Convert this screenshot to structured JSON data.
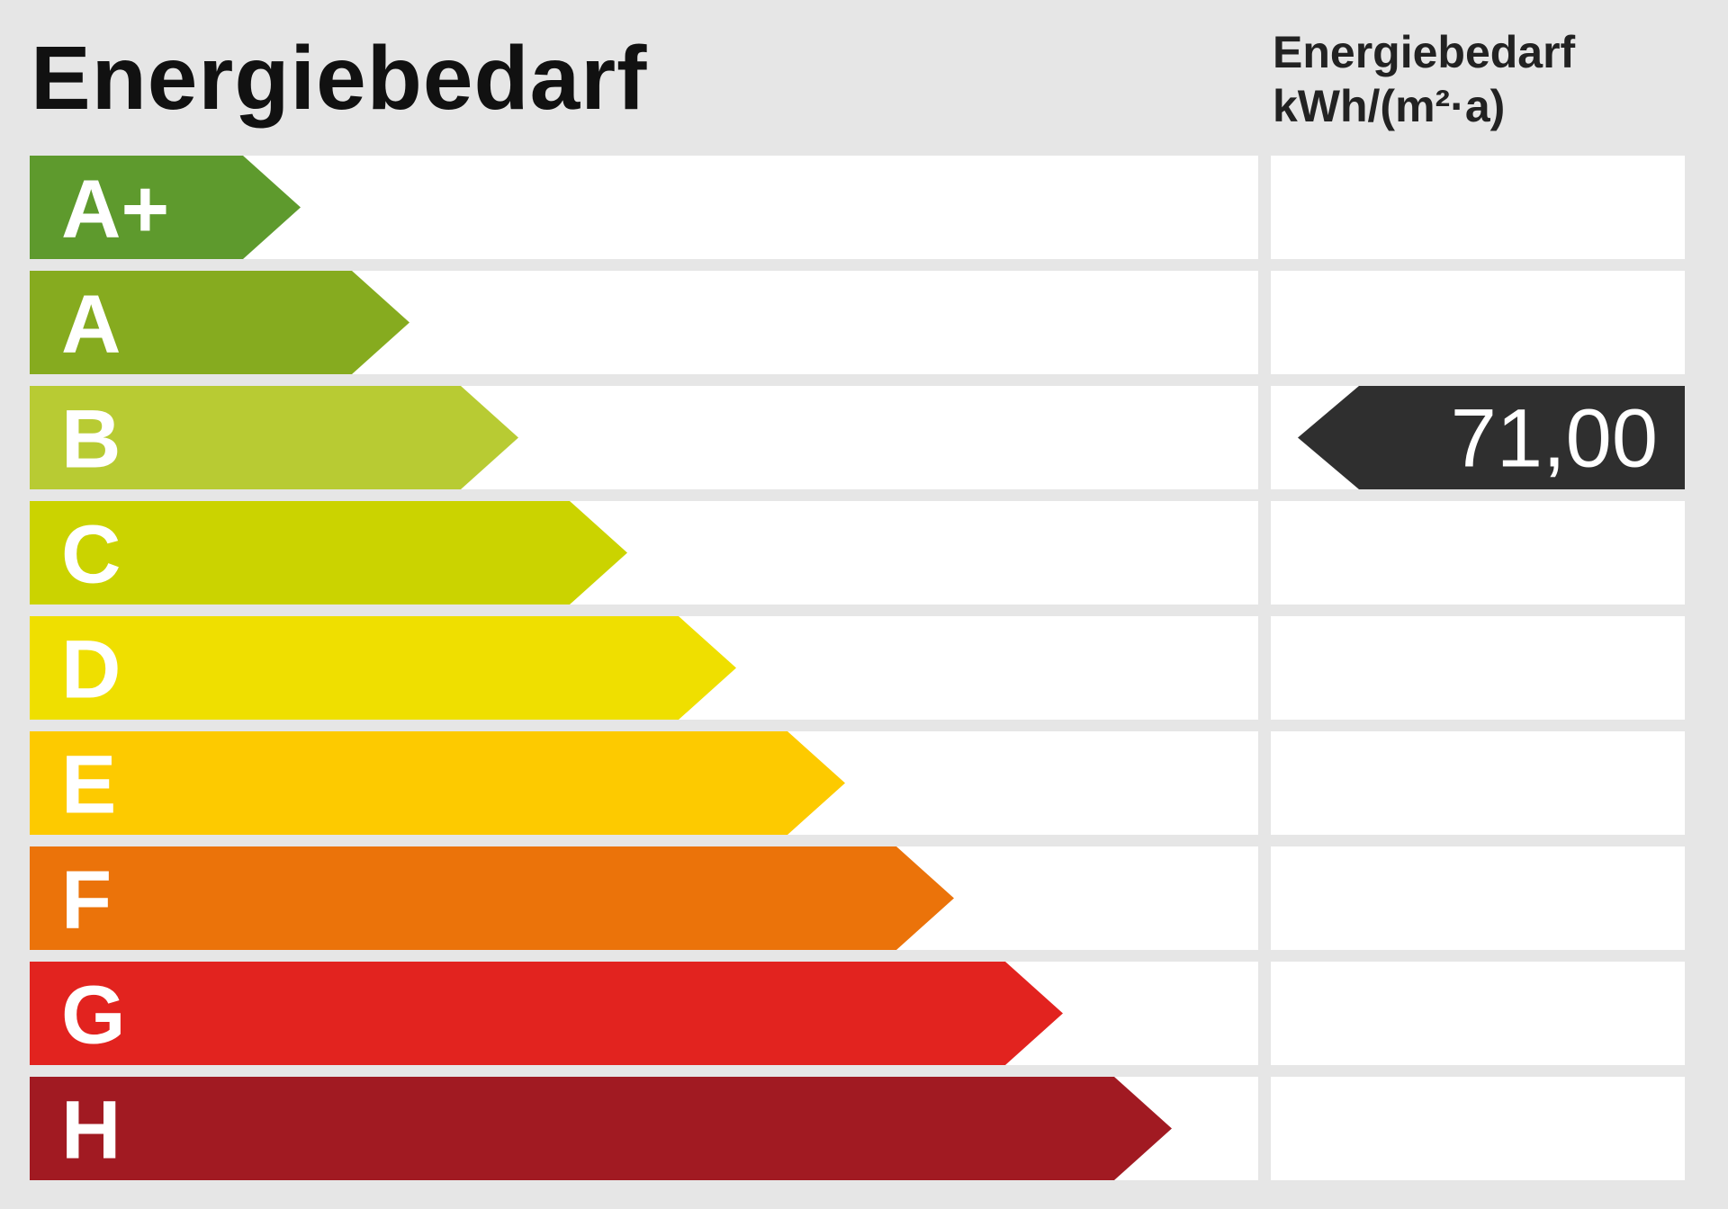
{
  "chart_data": {
    "type": "energy-efficiency-scale",
    "title": "Energiebedarf",
    "value_column_header": [
      "Energiebedarf",
      "kWh/(m²·a)"
    ],
    "classes": [
      {
        "label": "A+",
        "color": "#5e9a2d"
      },
      {
        "label": "A",
        "color": "#86ab1f"
      },
      {
        "label": "B",
        "color": "#b8cb33"
      },
      {
        "label": "C",
        "color": "#cbd300"
      },
      {
        "label": "D",
        "color": "#efdf00"
      },
      {
        "label": "E",
        "color": "#fdca00"
      },
      {
        "label": "F",
        "color": "#eb730a"
      },
      {
        "label": "G",
        "color": "#e2231f"
      },
      {
        "label": "H",
        "color": "#a11a22"
      }
    ],
    "marker": {
      "class": "B",
      "value": "71,00",
      "color": "#2f2f2f"
    }
  }
}
